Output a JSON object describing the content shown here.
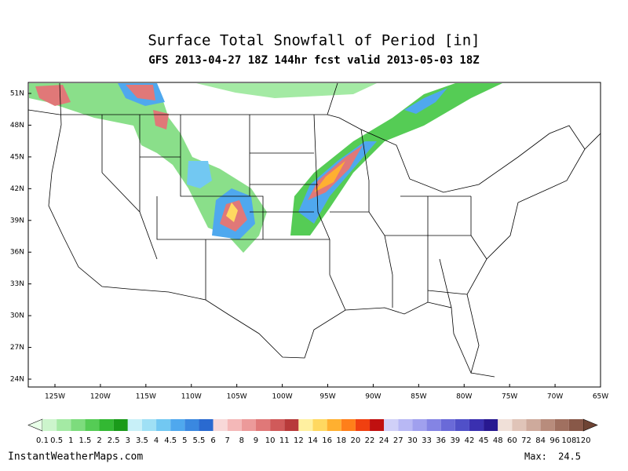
{
  "title": "Surface Total Snowfall of Period [in]",
  "subtitle": "GFS 2013-04-27 18Z 144hr fcst valid 2013-05-03 18Z",
  "lat_labels": [
    "51N",
    "48N",
    "45N",
    "42N",
    "39N",
    "36N",
    "33N",
    "30N",
    "27N",
    "24N"
  ],
  "lon_labels": [
    "125W",
    "120W",
    "115W",
    "110W",
    "105W",
    "100W",
    "95W",
    "90W",
    "85W",
    "80W",
    "75W",
    "70W",
    "65W"
  ],
  "colorbar": {
    "ticks": [
      0.1,
      0.5,
      1,
      1.5,
      2,
      2.5,
      3,
      3.5,
      4,
      4.5,
      5,
      5.5,
      6,
      7,
      8,
      9,
      10,
      11,
      12,
      14,
      16,
      18,
      20,
      22,
      24,
      27,
      30,
      33,
      36,
      39,
      42,
      45,
      48,
      60,
      72,
      84,
      96,
      108,
      120
    ],
    "colors": [
      "#ccf5cc",
      "#a4eaa4",
      "#7ddc7d",
      "#55cc55",
      "#33b833",
      "#1a9a1a",
      "#c8f0f8",
      "#9fe0f5",
      "#72c8f2",
      "#4fa8ee",
      "#3a88e0",
      "#2a6ad0",
      "#f8d8d8",
      "#f4b8b8",
      "#ec9a9a",
      "#e07878",
      "#d05a5a",
      "#b83a3a",
      "#fff0a0",
      "#ffd860",
      "#ffb030",
      "#ff7f1a",
      "#f04010",
      "#c01010",
      "#d0d0f8",
      "#b8b8f4",
      "#a0a0ee",
      "#8484e4",
      "#6a6ad8",
      "#5050c8",
      "#3a30b0",
      "#281890",
      "#f0e0d8",
      "#e0c4b8",
      "#ceaa9c",
      "#b88c7c",
      "#a07060",
      "#885848"
    ],
    "under_color": "#e8ffe8",
    "over_color": "#6e4434"
  },
  "footer": {
    "site": "InstantWeatherMaps.com",
    "max_label": "Max:",
    "max_value": 24.5
  }
}
